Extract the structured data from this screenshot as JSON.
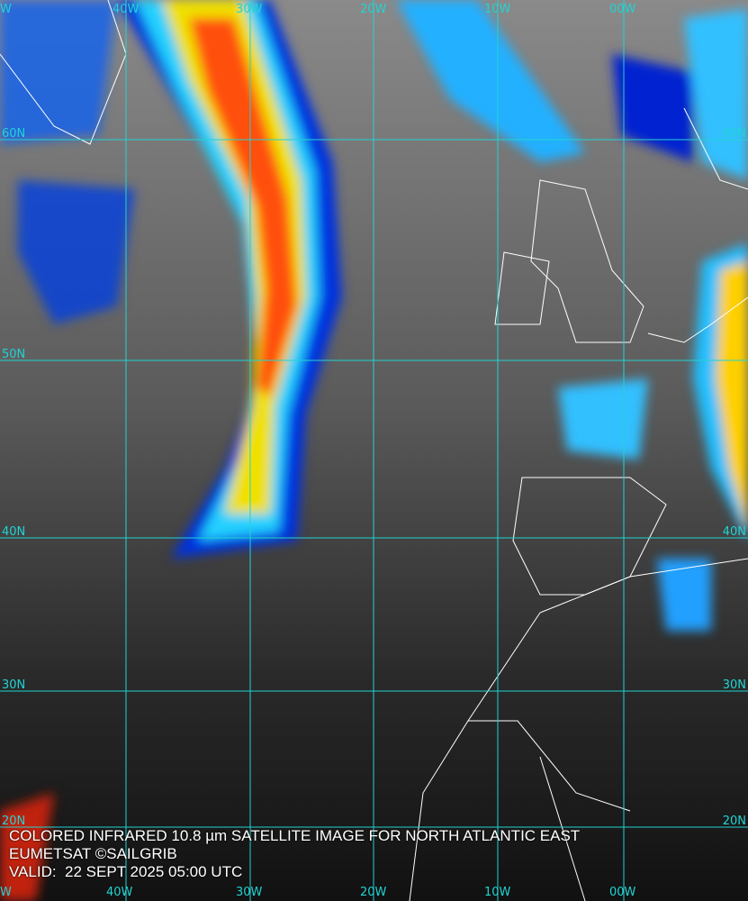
{
  "title": "COLORED INFRARED 10.8 µm SATELLITE IMAGE FOR NORTH ATLANTIC EAST",
  "credit": "EUMETSAT ©SAILGRIB",
  "valid": "VALID:  22 SEPT 2025 05:00 UTC",
  "longitude_labels": [
    "W",
    "40W",
    "30W",
    "20W",
    "10W",
    "00W"
  ],
  "latitude_labels": [
    "60N",
    "50N",
    "40N",
    "30N",
    "20N"
  ],
  "right_latitude_labels": [
    "60N",
    "40N",
    "30N",
    "20N"
  ],
  "colors": {
    "grid": "#22d3d3",
    "coast": "#ffffff",
    "cold_top": "#ff2000",
    "mid": "#ffe000",
    "warm": "#00c8ff",
    "base": "#0010c0"
  }
}
